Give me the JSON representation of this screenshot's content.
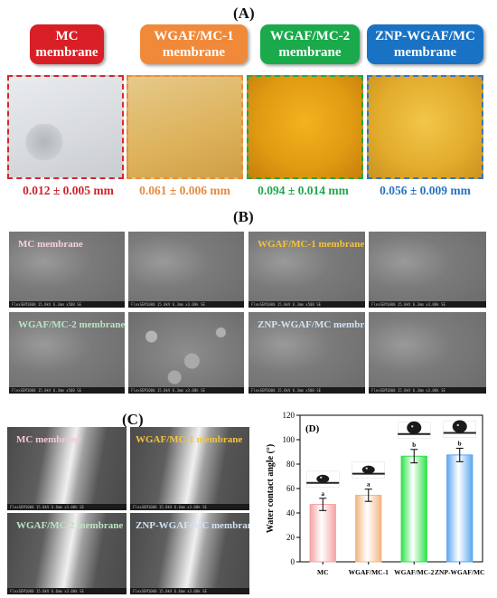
{
  "panel_labels": {
    "a": "(A)",
    "b": "(B)",
    "c": "(C)",
    "d": "(D)"
  },
  "panelA": {
    "membranes": [
      {
        "line1": "MC",
        "line2": "membrane",
        "color": "#d91f26",
        "thickness": "0.012 ± 0.005 mm",
        "thickness_color": "#c9252a",
        "border": "#d8262b"
      },
      {
        "line1": "WGAF/MC-1",
        "line2": "membrane",
        "color": "#f08a3a",
        "thickness": "0.061 ± 0.006 mm",
        "thickness_color": "#e58b40",
        "border": "#ef8a3c"
      },
      {
        "line1": "WGAF/MC-2",
        "line2": "membrane",
        "color": "#1aaa4b",
        "thickness": "0.094 ± 0.014 mm",
        "thickness_color": "#23a74d",
        "border": "#1aaa4b"
      },
      {
        "line1": "ZNP-WGAF/MC",
        "line2": "membrane",
        "color": "#1a72c4",
        "thickness": "0.056 ± 0.009 mm",
        "thickness_color": "#2a72c0",
        "border": "#3474c4"
      }
    ]
  },
  "panelB": {
    "labels": [
      {
        "text": "MC membrane",
        "color": "#f4d0e0"
      },
      {
        "text": "WGAF/MC-1 membrane",
        "color": "#f5c33b"
      },
      {
        "text": "WGAF/MC-2 membrane",
        "color": "#b9e6c2"
      },
      {
        "text": "ZNP-WGAF/MC membrane",
        "color": "#cfe3f5"
      }
    ],
    "scale_text": "FlexSEM1000 15.0kV 6.3mm x500 SE",
    "scale_text_hi": "FlexSEM1000 15.0kV 6.3mm x3.00k SE",
    "scale_bar_lo": "100µm",
    "scale_bar_hi": "10.0µm"
  },
  "panelC": {
    "labels": [
      {
        "text": "MC membrane",
        "color": "#f4c6d8"
      },
      {
        "text": "WGAF/MC-1 membrane",
        "color": "#f5c33b"
      },
      {
        "text": "WGAF/MC-2 membrane",
        "color": "#b9e6c2"
      },
      {
        "text": "ZNP-WGAF/MC membrane",
        "color": "#cfe3f5"
      }
    ],
    "scale_text": "FlexSEM1000 15.0kV 6.6mm x3.00k SE",
    "scale_bar": "10.0µm"
  },
  "chart_data": {
    "type": "bar",
    "title": "",
    "xlabel": "",
    "ylabel": "Water contact angle (°)",
    "categories": [
      "MC",
      "WGAF/MC-1",
      "WGAF/MC-2",
      "ZNP-WGAF/MC"
    ],
    "values": [
      47,
      54.5,
      86.5,
      87.5
    ],
    "errors": [
      5,
      5,
      5.5,
      5.5
    ],
    "significance": [
      "a",
      "a",
      "b",
      "b"
    ],
    "ylim": [
      0,
      120
    ],
    "yticks": [
      0,
      20,
      40,
      60,
      80,
      100,
      120
    ],
    "colors": [
      "#f5a3a3",
      "#f2b581",
      "#2ee14a",
      "#5aa8f0"
    ],
    "grid": false
  }
}
